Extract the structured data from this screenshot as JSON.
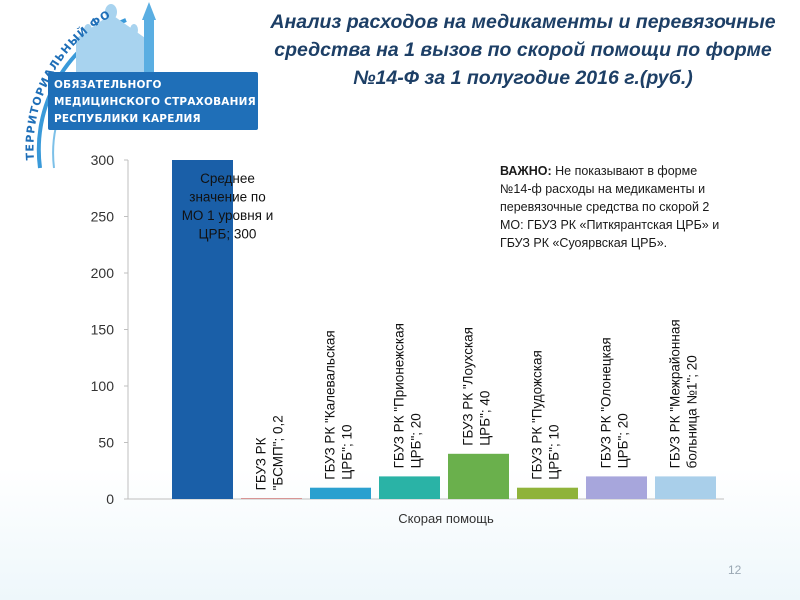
{
  "slide": {
    "title": "Анализ расходов на медикаменты и перевязочные средства на 1 вызов по скорой помощи по форме №14-Ф за 1 полугодие 2016 г.(руб.)",
    "page_number": "12"
  },
  "logo": {
    "arc_text": "ТЕРРИТОРИАЛЬНЫЙ ФОНД",
    "lines": [
      "ОБЯЗАТЕЛЬНОГО",
      "МЕДИЦИНСКОГО СТРАХОВАНИЯ",
      "РЕСПУБЛИКИ КАРЕЛИЯ"
    ],
    "colors": {
      "primary": "#1f6fb8",
      "arc": "#3a9ad9"
    }
  },
  "note": {
    "label": "ВАЖНО:",
    "text": " Не показывают в форме №14-ф расходы на медикаменты и перевязочные средства по скорой 2 МО: ГБУЗ РК «Питкярантская ЦРБ» и ГБУЗ РК «Суоярвская ЦРБ»."
  },
  "chart_data": {
    "type": "bar",
    "xlabel": "Скорая помощь",
    "ylabel": "",
    "ylim": [
      0,
      300
    ],
    "yticks": [
      0,
      50,
      100,
      150,
      200,
      250,
      300
    ],
    "grid": false,
    "bars": [
      {
        "label": "Среднее значение по МО 1 уровня и ЦРБ; 300",
        "value": 300,
        "color": "#1a5fa8",
        "label_position": "inside-top"
      },
      {
        "label": "ГБУЗ РК \"БСМП\"; 0,2",
        "value": 0.2,
        "color": "#c0504d",
        "label_position": "vertical"
      },
      {
        "label": "ГБУЗ РК \"Калевальская ЦРБ\"; 10",
        "value": 10,
        "color": "#2aa0cf",
        "label_position": "vertical"
      },
      {
        "label": "ГБУЗ РК \"Прионежская ЦРБ\"; 20",
        "value": 20,
        "color": "#2ab3a6",
        "label_position": "vertical"
      },
      {
        "label": "ГБУЗ РК \"Лоухская ЦРБ\"; 40",
        "value": 40,
        "color": "#6ab04c",
        "label_position": "vertical"
      },
      {
        "label": "ГБУЗ РК \"Пудожская ЦРБ\"; 10",
        "value": 10,
        "color": "#8fb33a",
        "label_position": "vertical"
      },
      {
        "label": "ГБУЗ РК \"Олонецкая ЦРБ\"; 20",
        "value": 20,
        "color": "#a7a6dc",
        "label_position": "vertical"
      },
      {
        "label": "ГБУЗ РК \"Межрайонная больница №1\"; 20",
        "value": 20,
        "color": "#a9cfea",
        "label_position": "vertical"
      }
    ]
  }
}
